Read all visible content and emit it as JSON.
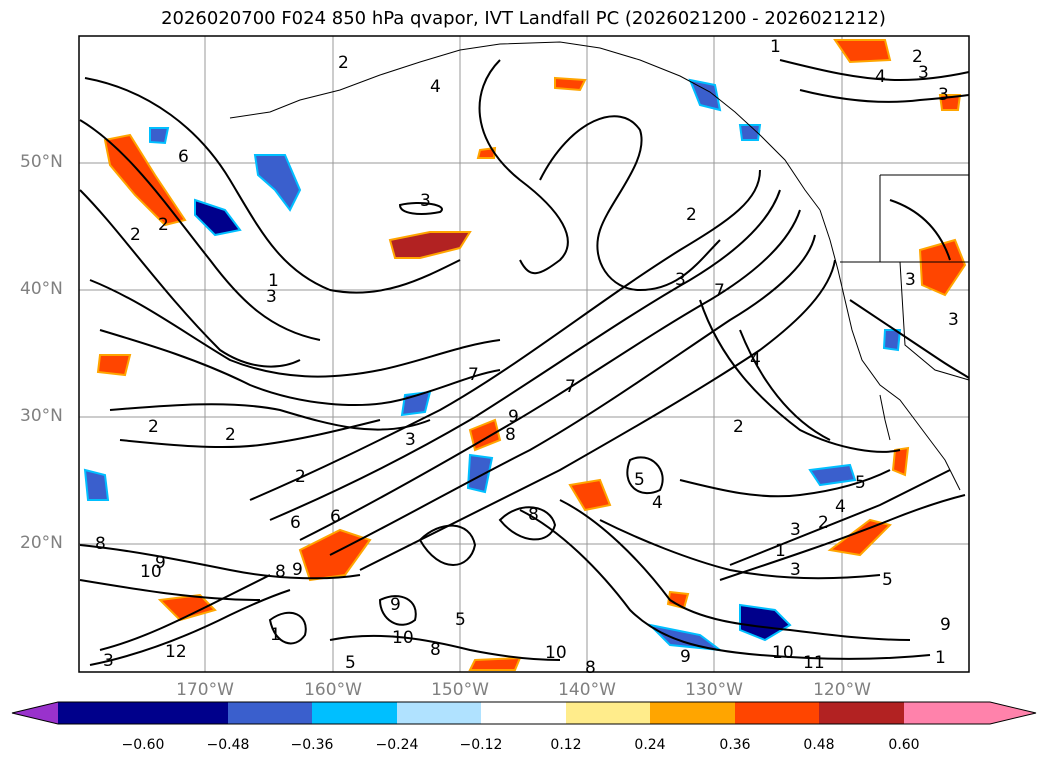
{
  "title": "2026020700 F024 850 hPa qvapor, IVT Landfall PC (2026021200 - 2026021212)",
  "map": {
    "lat_labels": [
      "50°N",
      "40°N",
      "30°N",
      "20°N"
    ],
    "lon_labels": [
      "170°W",
      "160°W",
      "150°W",
      "140°W",
      "130°W",
      "120°W"
    ],
    "contour_labels": [
      "1",
      "2",
      "3",
      "4",
      "5",
      "6",
      "7",
      "8",
      "9",
      "10",
      "11",
      "12"
    ]
  },
  "colorbar": {
    "ticks": [
      "−0.60",
      "−0.48",
      "−0.36",
      "−0.24",
      "−0.12",
      "0.12",
      "0.24",
      "0.36",
      "0.48",
      "0.60"
    ],
    "colors": [
      "#9932cc",
      "#00008b",
      "#3a5fcd",
      "#00bfff",
      "#b0e2ff",
      "#ffffff",
      "#ffec8b",
      "#ffa500",
      "#ff4500",
      "#b22222",
      "#ff82ab"
    ]
  }
}
